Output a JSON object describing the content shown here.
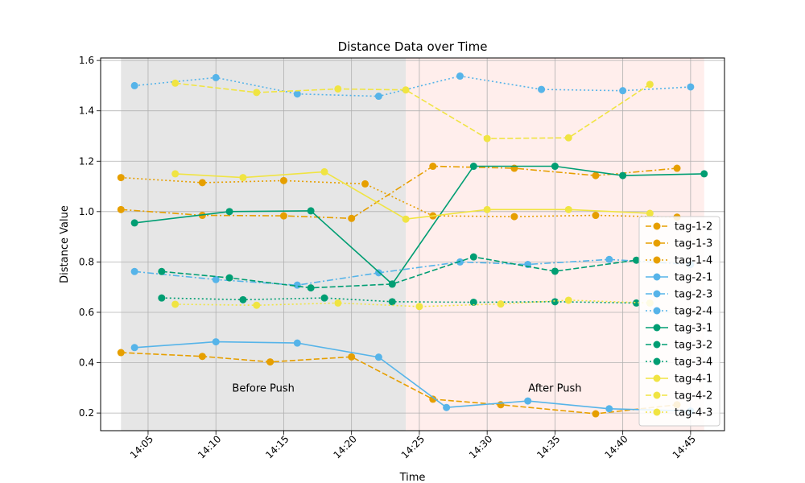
{
  "chart_data": {
    "type": "line",
    "title": "Distance Data over Time",
    "xlabel": "Time",
    "ylabel": "Distance Value",
    "x_ticks": [
      "14:05",
      "14:10",
      "14:15",
      "14:20",
      "14:25",
      "14:30",
      "14:35",
      "14:40",
      "14:45"
    ],
    "y_ticks": [
      "0.2",
      "0.4",
      "0.6",
      "0.8",
      "1.0",
      "1.2",
      "1.4",
      "1.6"
    ],
    "xlim": [
      "14:01.5",
      "14:47.5"
    ],
    "ylim": [
      0.13,
      1.61
    ],
    "grid": true,
    "legend_position": "lower right",
    "regions": [
      {
        "label": "Before Push",
        "start": "14:03",
        "end": "14:24",
        "color": "#e6e6e6"
      },
      {
        "label": "After Push",
        "start": "14:24",
        "end": "14:46",
        "color": "#ffeeec"
      }
    ],
    "series": [
      {
        "name": "tag-1-2",
        "color": "#e69f00",
        "dash": "dashed",
        "points": [
          [
            "14:03",
            0.44
          ],
          [
            "14:09",
            0.425
          ],
          [
            "14:14",
            0.403
          ],
          [
            "14:20",
            0.423
          ],
          [
            "14:26",
            0.255
          ],
          [
            "14:31",
            0.233
          ],
          [
            "14:38",
            0.197
          ],
          [
            "14:44",
            0.233
          ]
        ]
      },
      {
        "name": "tag-1-3",
        "color": "#e69f00",
        "dash": "dashdot",
        "points": [
          [
            "14:03",
            1.008
          ],
          [
            "14:09",
            0.985
          ],
          [
            "14:15",
            0.983
          ],
          [
            "14:20",
            0.973
          ],
          [
            "14:26",
            1.18
          ],
          [
            "14:32",
            1.172
          ],
          [
            "14:38",
            1.143
          ],
          [
            "14:44",
            1.172
          ]
        ]
      },
      {
        "name": "tag-1-4",
        "color": "#e69f00",
        "dash": "dotted",
        "points": [
          [
            "14:03",
            1.135
          ],
          [
            "14:09",
            1.115
          ],
          [
            "14:15",
            1.123
          ],
          [
            "14:21",
            1.11
          ],
          [
            "14:26",
            0.983
          ],
          [
            "14:32",
            0.98
          ],
          [
            "14:38",
            0.985
          ],
          [
            "14:44",
            0.978
          ]
        ]
      },
      {
        "name": "tag-2-1",
        "color": "#56b4e9",
        "dash": "solid",
        "points": [
          [
            "14:04",
            0.46
          ],
          [
            "14:10",
            0.483
          ],
          [
            "14:16",
            0.478
          ],
          [
            "14:22",
            0.422
          ],
          [
            "14:27",
            0.222
          ],
          [
            "14:33",
            0.248
          ],
          [
            "14:39",
            0.217
          ],
          [
            "14:45",
            0.208
          ]
        ]
      },
      {
        "name": "tag-2-3",
        "color": "#56b4e9",
        "dash": "dashdot",
        "points": [
          [
            "14:04",
            0.762
          ],
          [
            "14:10",
            0.73
          ],
          [
            "14:16",
            0.708
          ],
          [
            "14:22",
            0.757
          ],
          [
            "14:28",
            0.8
          ],
          [
            "14:33",
            0.79
          ],
          [
            "14:39",
            0.81
          ],
          [
            "14:45",
            0.79
          ]
        ]
      },
      {
        "name": "tag-2-4",
        "color": "#56b4e9",
        "dash": "dotted",
        "points": [
          [
            "14:04",
            1.5
          ],
          [
            "14:10",
            1.532
          ],
          [
            "14:16",
            1.467
          ],
          [
            "14:22",
            1.458
          ],
          [
            "14:28",
            1.538
          ],
          [
            "14:34",
            1.485
          ],
          [
            "14:40",
            1.48
          ],
          [
            "14:45",
            1.495
          ]
        ]
      },
      {
        "name": "tag-3-1",
        "color": "#009e73",
        "dash": "solid",
        "points": [
          [
            "14:04",
            0.955
          ],
          [
            "14:11",
            1.0
          ],
          [
            "14:17",
            1.003
          ],
          [
            "14:23",
            0.712
          ],
          [
            "14:29",
            1.18
          ],
          [
            "14:35",
            1.18
          ],
          [
            "14:40",
            1.143
          ],
          [
            "14:46",
            1.15
          ]
        ]
      },
      {
        "name": "tag-3-2",
        "color": "#009e73",
        "dash": "dashed",
        "points": [
          [
            "14:06",
            0.762
          ],
          [
            "14:11",
            0.737
          ],
          [
            "14:17",
            0.697
          ],
          [
            "14:23",
            0.712
          ],
          [
            "14:29",
            0.82
          ],
          [
            "14:35",
            0.763
          ],
          [
            "14:41",
            0.807
          ]
        ]
      },
      {
        "name": "tag-3-4",
        "color": "#009e73",
        "dash": "dotted",
        "points": [
          [
            "14:06",
            0.657
          ],
          [
            "14:12",
            0.65
          ],
          [
            "14:18",
            0.657
          ],
          [
            "14:23",
            0.642
          ],
          [
            "14:29",
            0.64
          ],
          [
            "14:35",
            0.642
          ],
          [
            "14:41",
            0.637
          ]
        ]
      },
      {
        "name": "tag-4-1",
        "color": "#f0e442",
        "dash": "solid",
        "points": [
          [
            "14:07",
            1.15
          ],
          [
            "14:12",
            1.135
          ],
          [
            "14:18",
            1.158
          ],
          [
            "14:24",
            0.97
          ],
          [
            "14:30",
            1.008
          ],
          [
            "14:36",
            1.008
          ],
          [
            "14:42",
            0.993
          ]
        ]
      },
      {
        "name": "tag-4-2",
        "color": "#f0e442",
        "dash": "dashed",
        "points": [
          [
            "14:07",
            1.51
          ],
          [
            "14:13",
            1.473
          ],
          [
            "14:19",
            1.487
          ],
          [
            "14:24",
            1.483
          ],
          [
            "14:30",
            1.29
          ],
          [
            "14:36",
            1.293
          ],
          [
            "14:42",
            1.505
          ]
        ]
      },
      {
        "name": "tag-4-3",
        "color": "#f0e442",
        "dash": "dotted",
        "points": [
          [
            "14:07",
            0.632
          ],
          [
            "14:13",
            0.628
          ],
          [
            "14:19",
            0.637
          ],
          [
            "14:25",
            0.623
          ],
          [
            "14:31",
            0.633
          ],
          [
            "14:36",
            0.648
          ],
          [
            "14:42",
            0.637
          ]
        ]
      }
    ],
    "annotations": [
      {
        "text": "Before Push",
        "x": "14:13.5",
        "y": 0.285
      },
      {
        "text": "After Push",
        "x": "14:35",
        "y": 0.285
      }
    ]
  }
}
